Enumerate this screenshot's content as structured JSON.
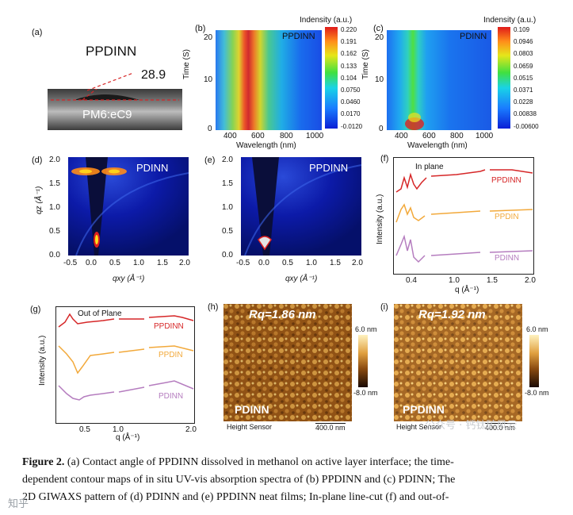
{
  "panels": {
    "a": {
      "label": "(a)",
      "sample": "PPDINN",
      "angle": "28.9",
      "substrate": "PM6:eC9"
    },
    "b": {
      "label": "(b)",
      "sample": "PPDINN",
      "ylabel": "Time (S)",
      "xlabel": "Wavelength (nm)",
      "xticks": [
        "400",
        "600",
        "800",
        "1000"
      ],
      "yticks": [
        "0",
        "10",
        "20"
      ],
      "cbar_title": "Indensity (a.u.)",
      "cbar_ticks": [
        "0.220",
        "0.191",
        "0.162",
        "0.133",
        "0.104",
        "0.0750",
        "0.0460",
        "0.0170",
        "-0.0120"
      ]
    },
    "c": {
      "label": "(c)",
      "sample": "PDINN",
      "ylabel": "Time (S)",
      "xlabel": "Wavelength (nm)",
      "xticks": [
        "400",
        "600",
        "800",
        "1000"
      ],
      "yticks": [
        "0",
        "10",
        "20"
      ],
      "cbar_title": "Indensity (a.u.)",
      "cbar_ticks": [
        "0.109",
        "0.0946",
        "0.0803",
        "0.0659",
        "0.0515",
        "0.0371",
        "0.0228",
        "0.00838",
        "-0.00600"
      ]
    },
    "d": {
      "label": "(d)",
      "sample": "PDINN",
      "ylabel": "qz (Å⁻¹)",
      "xlabel": "qxy (Å⁻¹)",
      "xticks": [
        "-0.5",
        "0.0",
        "0.5",
        "1.0",
        "1.5",
        "2.0"
      ],
      "yticks": [
        "0.0",
        "0.5",
        "1.0",
        "1.5",
        "2.0"
      ]
    },
    "e": {
      "label": "(e)",
      "sample": "PPDINN",
      "xlabel": "qxy (Å⁻¹)",
      "xticks": [
        "-0.5",
        "0.0",
        "0.5",
        "1.0",
        "1.5",
        "2.0"
      ],
      "yticks": [
        "0.0",
        "0.5",
        "1.0",
        "1.5",
        "2.0"
      ]
    },
    "f": {
      "label": "(f)",
      "title": "In plane",
      "ylabel": "Intensity (a.u.)",
      "xlabel": "q (Å⁻¹)",
      "xticks": [
        "0.4",
        "1.0",
        "1.5",
        "2.0"
      ],
      "series": [
        "PPDINN",
        "PPDIN",
        "PDINN"
      ]
    },
    "g": {
      "label": "(g)",
      "title": "Out of Plane",
      "ylabel": "Intensity (a.u.)",
      "xlabel": "q (Å⁻¹)",
      "xticks": [
        "0.5",
        "1.0",
        "2.0"
      ],
      "series": [
        "PPDINN",
        "PPDIN",
        "PDINN"
      ]
    },
    "h": {
      "label": "(h)",
      "rq": "Rq=1.86 nm",
      "sample": "PDINN",
      "sensor": "Height Sensor",
      "scale": "400.0 nm",
      "cbar_max": "6.0 nm",
      "cbar_min": "-8.0 nm"
    },
    "i": {
      "label": "(i)",
      "rq": "Rq=1.92 nm",
      "sample": "PPDINN",
      "sensor": "Height Sensor",
      "scale": "400.0 nm",
      "cbar_max": "6.0 nm",
      "cbar_min": "-8.0 nm"
    }
  },
  "caption": {
    "lead": "Figure 2.",
    "line1": " (a)  Contact angle of PPDINN dissolved in methanol on active layer interface; the time-",
    "line2": "dependent contour maps of in situ UV-vis absorption spectra of (b) PPDINN and (c) PDINN; The",
    "line3": "2D GIWAXS pattern of (d) PDINN and (e) PPDINN neat films; In-plane line-cut (f) and out-of-"
  },
  "watermark": {
    "left": "知乎",
    "right": "公众号 · 钙钛矿风云"
  },
  "colors": {
    "ppdinn": "#d62728",
    "ppdin": "#f2a93b",
    "pdinn": "#b57dbf"
  }
}
